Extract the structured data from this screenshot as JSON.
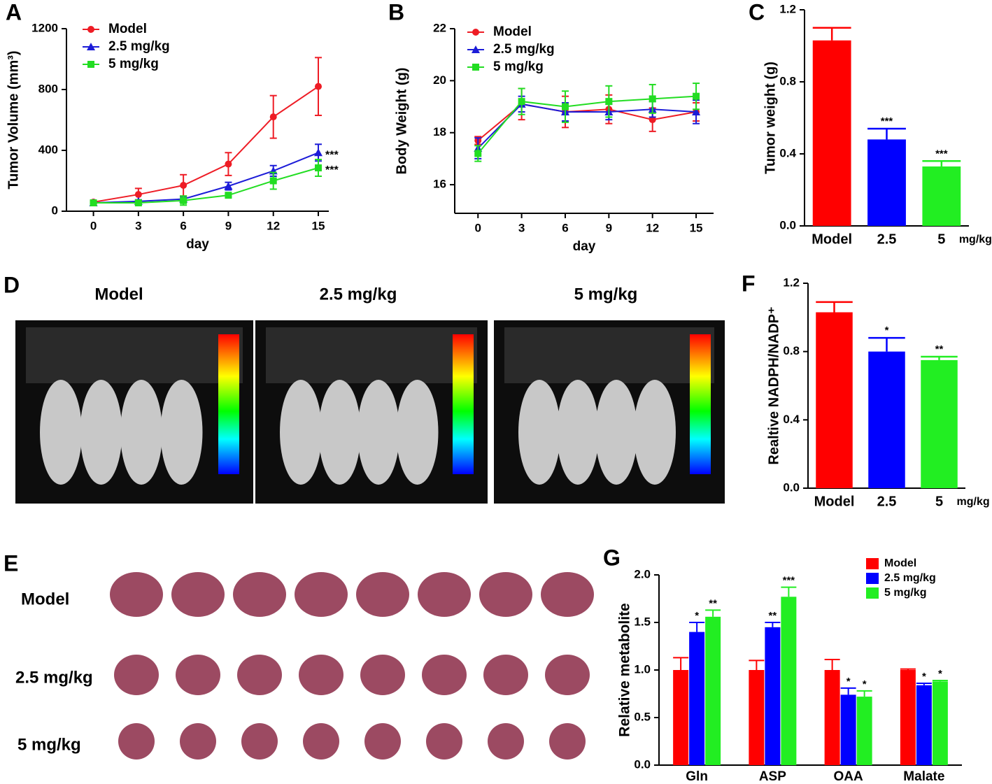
{
  "chart_data": [
    {
      "type": "line",
      "panel": "A",
      "xlabel": "day",
      "ylabel": "Tumor Volume (mm³)",
      "x": [
        0,
        3,
        6,
        9,
        12,
        15
      ],
      "xlim": [
        -1.8,
        15.7
      ],
      "xticks": [
        0,
        3,
        6,
        9,
        12,
        15
      ],
      "ylim": [
        0,
        1200
      ],
      "yticks": [
        0,
        400,
        800,
        1200
      ],
      "legend": "upper left",
      "series": [
        {
          "name": "Model",
          "color": "#ee1c25",
          "marker": "circle",
          "values": [
            60,
            110,
            170,
            310,
            620,
            820
          ],
          "errors": [
            10,
            40,
            70,
            75,
            140,
            190
          ],
          "significance": null
        },
        {
          "name": "2.5 mg/kg",
          "color": "#1c1cd8",
          "marker": "triangle",
          "values": [
            55,
            65,
            80,
            165,
            265,
            385
          ],
          "errors": [
            5,
            10,
            15,
            25,
            35,
            55
          ],
          "significance": "***"
        },
        {
          "name": "5 mg/kg",
          "color": "#22dd22",
          "marker": "square",
          "values": [
            55,
            55,
            70,
            105,
            200,
            285
          ],
          "errors": [
            5,
            10,
            30,
            10,
            55,
            55
          ],
          "significance": "***"
        }
      ]
    },
    {
      "type": "line",
      "panel": "B",
      "xlabel": "day",
      "ylabel": "Body Weight (g)",
      "x": [
        0,
        3,
        6,
        9,
        12,
        15
      ],
      "xlim": [
        -1.6,
        16.2
      ],
      "xticks": [
        0,
        3,
        6,
        9,
        12,
        15
      ],
      "ylim": [
        14.9,
        22
      ],
      "yticks": [
        16,
        18,
        20,
        22
      ],
      "legend": "upper left",
      "series": [
        {
          "name": "Model",
          "color": "#ee1c25",
          "marker": "circle",
          "values": [
            17.7,
            19.1,
            18.8,
            18.9,
            18.5,
            18.8
          ],
          "errors": [
            0.15,
            0.6,
            0.6,
            0.55,
            0.45,
            0.35
          ],
          "significance": null
        },
        {
          "name": "2.5 mg/kg",
          "color": "#1c1cd8",
          "marker": "triangle",
          "values": [
            17.4,
            19.1,
            18.8,
            18.8,
            18.9,
            18.8
          ],
          "errors": [
            0.4,
            0.3,
            0.35,
            0.3,
            0.3,
            0.45
          ],
          "significance": null
        },
        {
          "name": "5 mg/kg",
          "color": "#22dd22",
          "marker": "square",
          "values": [
            17.2,
            19.2,
            19.0,
            19.2,
            19.3,
            19.4
          ],
          "errors": [
            0.3,
            0.5,
            0.6,
            0.6,
            0.55,
            0.5
          ],
          "significance": null
        }
      ]
    },
    {
      "type": "bar",
      "panel": "C",
      "ylabel": "Tumor weight (g)",
      "x_unit": "mg/kg",
      "categories": [
        "Model",
        "2.5",
        "5"
      ],
      "colors": [
        "#ff0000",
        "#0000ff",
        "#22ee22"
      ],
      "values": [
        1.03,
        0.48,
        0.33
      ],
      "errors": [
        0.07,
        0.06,
        0.03
      ],
      "significance": [
        null,
        "***",
        "***"
      ],
      "ylim": [
        0,
        1.2
      ],
      "yticks": [
        {
          "value": 0,
          "label": "0.0"
        },
        0.4,
        0.8,
        1.2
      ]
    },
    {
      "type": "bar",
      "panel": "F",
      "ylabel": "Realtive NADPH/NADP⁺",
      "x_unit": "mg/kg",
      "categories": [
        "Model",
        "2.5",
        "5"
      ],
      "colors": [
        "#ff0000",
        "#0000ff",
        "#22ee22"
      ],
      "values": [
        1.03,
        0.8,
        0.75
      ],
      "errors": [
        0.06,
        0.08,
        0.02
      ],
      "significance": [
        null,
        "*",
        "**"
      ],
      "ylim": [
        0,
        1.2
      ],
      "yticks": [
        {
          "value": 0,
          "label": "0.0"
        },
        0.4,
        0.8,
        1.2
      ]
    },
    {
      "type": "grouped_bar",
      "panel": "G",
      "ylabel": "Relative metabolite",
      "categories": [
        "Gln",
        "ASP",
        "OAA",
        "Malate"
      ],
      "ylim": [
        0,
        2.0
      ],
      "yticks": [
        {
          "value": 0,
          "label": "0.0"
        },
        0.5,
        {
          "value": 1,
          "label": "1.0"
        },
        1.5,
        {
          "value": 2,
          "label": "2.0"
        }
      ],
      "legend": "upper right",
      "series": [
        {
          "name": "Model",
          "color": "#ff0000",
          "values": [
            1,
            1,
            1,
            1
          ],
          "errors": [
            0.13,
            0.1,
            0.11,
            0.01
          ],
          "significance": [
            null,
            null,
            null,
            null
          ]
        },
        {
          "name": "2.5 mg/kg",
          "color": "#0000ff",
          "values": [
            1.4,
            1.45,
            0.74,
            0.84
          ],
          "errors": [
            0.1,
            0.05,
            0.07,
            0.02
          ],
          "significance": [
            "*",
            "**",
            "*",
            "*"
          ]
        },
        {
          "name": "5 mg/kg",
          "color": "#22ee22",
          "values": [
            1.56,
            1.77,
            0.72,
            0.88
          ],
          "errors": [
            0.07,
            0.1,
            0.06,
            0.01
          ],
          "significance": [
            "**",
            "***",
            "*",
            "*"
          ]
        }
      ]
    }
  ],
  "panel_d": {
    "panel": "D",
    "labels": [
      "Model",
      "2.5 mg/kg",
      "5 mg/kg"
    ]
  },
  "panel_e": {
    "panel": "E",
    "labels": [
      "Model",
      "2.5 mg/kg",
      "5 mg/kg"
    ]
  }
}
